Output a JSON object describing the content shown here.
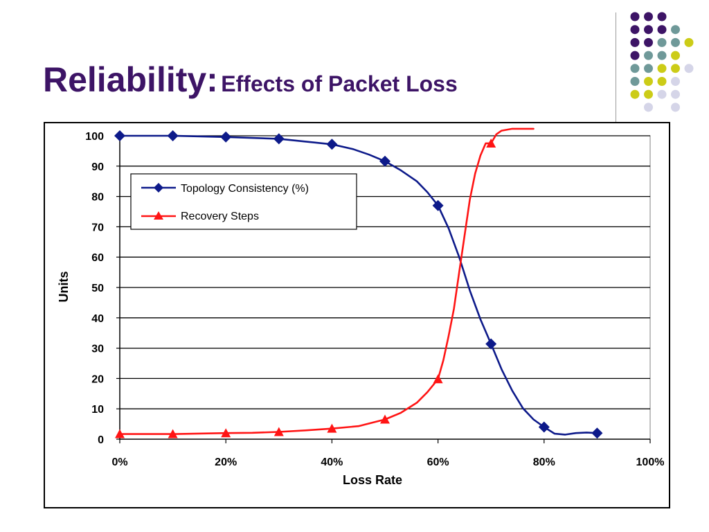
{
  "slide": {
    "title_main": "Reliability:",
    "title_sub": "Effects of Packet Loss"
  },
  "decoration": {
    "colors": {
      "purple": "#3d1466",
      "teal": "#6f9999",
      "yellow": "#cccc17",
      "lavender": "#d5d5e8"
    },
    "dot_rows": [
      [
        "purple",
        "purple",
        "purple",
        null
      ],
      [
        "purple",
        "purple",
        "purple",
        "teal"
      ],
      [
        "purple",
        "purple",
        "teal",
        "teal",
        "yellow"
      ],
      [
        "purple",
        "teal",
        "teal",
        "yellow"
      ],
      [
        "teal",
        "teal",
        "yellow",
        "yellow",
        "lavender"
      ],
      [
        "teal",
        "yellow",
        "yellow",
        "lavender"
      ],
      [
        "yellow",
        "yellow",
        "lavender",
        "lavender"
      ],
      [
        null,
        "lavender",
        null,
        "lavender"
      ]
    ]
  },
  "chart_data": {
    "type": "line",
    "xlabel": "Loss Rate",
    "ylabel": "Units",
    "xlim": [
      0,
      100
    ],
    "ylim": [
      0,
      100
    ],
    "x_ticks": [
      "0%",
      "20%",
      "40%",
      "60%",
      "80%",
      "100%"
    ],
    "x_tick_values": [
      0,
      20,
      40,
      60,
      80,
      100
    ],
    "y_ticks": [
      "0",
      "10",
      "20",
      "30",
      "40",
      "50",
      "60",
      "70",
      "80",
      "90",
      "100"
    ],
    "y_tick_values": [
      0,
      10,
      20,
      30,
      40,
      50,
      60,
      70,
      80,
      90,
      100
    ],
    "grid": "horizontal",
    "legend_position": "top-left",
    "series": [
      {
        "name": "Topology Consistency (%)",
        "color": "#0d1a8a",
        "marker": "diamond",
        "x": [
          0,
          10,
          20,
          30,
          40,
          50,
          60,
          70,
          80,
          90
        ],
        "y": [
          100,
          100,
          99.6,
          99,
          97.2,
          91.6,
          77,
          31.4,
          4,
          2
        ],
        "curve_x": [
          0,
          10,
          20,
          30,
          40,
          44,
          47,
          50,
          53,
          56,
          58,
          60,
          62,
          64,
          66,
          68,
          70,
          72,
          74,
          76,
          78,
          80,
          82,
          84,
          86,
          88,
          90
        ],
        "curve_y": [
          100,
          100,
          99.6,
          99,
          97.2,
          95.6,
          93.8,
          91.6,
          88.6,
          85,
          81.4,
          77,
          69.5,
          60,
          49,
          39.5,
          31.4,
          23,
          16,
          10.2,
          6.5,
          4,
          1.8,
          1.5,
          2.0,
          2.2,
          2
        ]
      },
      {
        "name": "Recovery Steps",
        "color": "#ff1414",
        "marker": "triangle",
        "x": [
          0,
          10,
          20,
          30,
          40,
          50,
          60,
          70
        ],
        "y": [
          1.7,
          1.7,
          2,
          2.4,
          3.5,
          6.5,
          19.8,
          97.5
        ],
        "curve_x": [
          0,
          10,
          20,
          25,
          30,
          35,
          40,
          45,
          50,
          53,
          56,
          58,
          60,
          61,
          62,
          63,
          64,
          65,
          66,
          67,
          68,
          69,
          70,
          71,
          72,
          74,
          76,
          78
        ],
        "curve_y": [
          1.7,
          1.7,
          2,
          2.1,
          2.4,
          2.9,
          3.5,
          4.3,
          6.5,
          8.7,
          12,
          15.5,
          19.8,
          26,
          34,
          43,
          55,
          67,
          79,
          87.5,
          93.5,
          97.5,
          97.5,
          100.5,
          101.7,
          102.3,
          102.3,
          102.3
        ]
      }
    ]
  }
}
